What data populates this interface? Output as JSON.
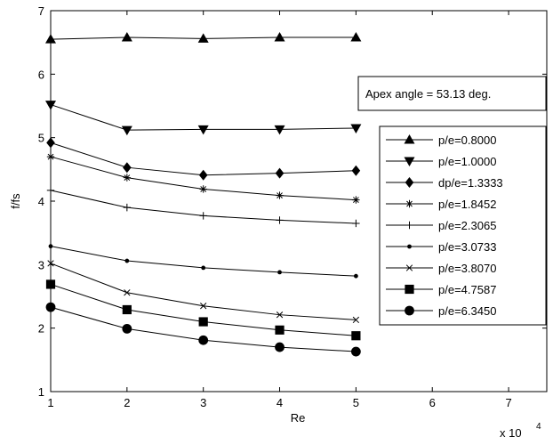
{
  "chart_data": {
    "type": "line",
    "title": "",
    "xlabel": "Re",
    "ylabel": "f/fs",
    "x_multiplier_label": "x 10",
    "x_multiplier_exp": "4",
    "xlim": [
      1,
      7.5
    ],
    "ylim": [
      1,
      7
    ],
    "xticks": [
      "1",
      "2",
      "3",
      "4",
      "5",
      "6",
      "7"
    ],
    "yticks": [
      "1",
      "2",
      "3",
      "4",
      "5",
      "6",
      "7"
    ],
    "x": [
      1,
      2,
      3,
      4,
      5
    ],
    "grid": false,
    "legend_position": "right",
    "annotation": "Apex angle = 53.13 deg.",
    "series": [
      {
        "name": "p/e=0.8000",
        "marker": "triangle-up",
        "values": [
          6.55,
          6.58,
          6.56,
          6.58,
          6.58
        ]
      },
      {
        "name": "p/e=1.0000",
        "marker": "triangle-down",
        "values": [
          5.52,
          5.12,
          5.13,
          5.13,
          5.15
        ]
      },
      {
        "name": "dp/e=1.3333",
        "marker": "diamond",
        "values": [
          4.92,
          4.53,
          4.41,
          4.44,
          4.48
        ]
      },
      {
        "name": "p/e=1.8452",
        "marker": "star",
        "values": [
          4.7,
          4.37,
          4.19,
          4.09,
          4.02
        ]
      },
      {
        "name": "p/e=2.3065",
        "marker": "plus",
        "values": [
          4.17,
          3.9,
          3.77,
          3.7,
          3.65
        ]
      },
      {
        "name": "p/e=3.0733",
        "marker": "dot",
        "values": [
          3.29,
          3.06,
          2.95,
          2.88,
          2.82
        ]
      },
      {
        "name": "p/e=3.8070",
        "marker": "x",
        "values": [
          3.02,
          2.56,
          2.35,
          2.21,
          2.13
        ]
      },
      {
        "name": "p/e=4.7587",
        "marker": "square",
        "values": [
          2.69,
          2.29,
          2.1,
          1.97,
          1.88
        ]
      },
      {
        "name": "p/e=6.3450",
        "marker": "circle",
        "values": [
          2.33,
          1.99,
          1.81,
          1.7,
          1.63
        ]
      }
    ]
  }
}
